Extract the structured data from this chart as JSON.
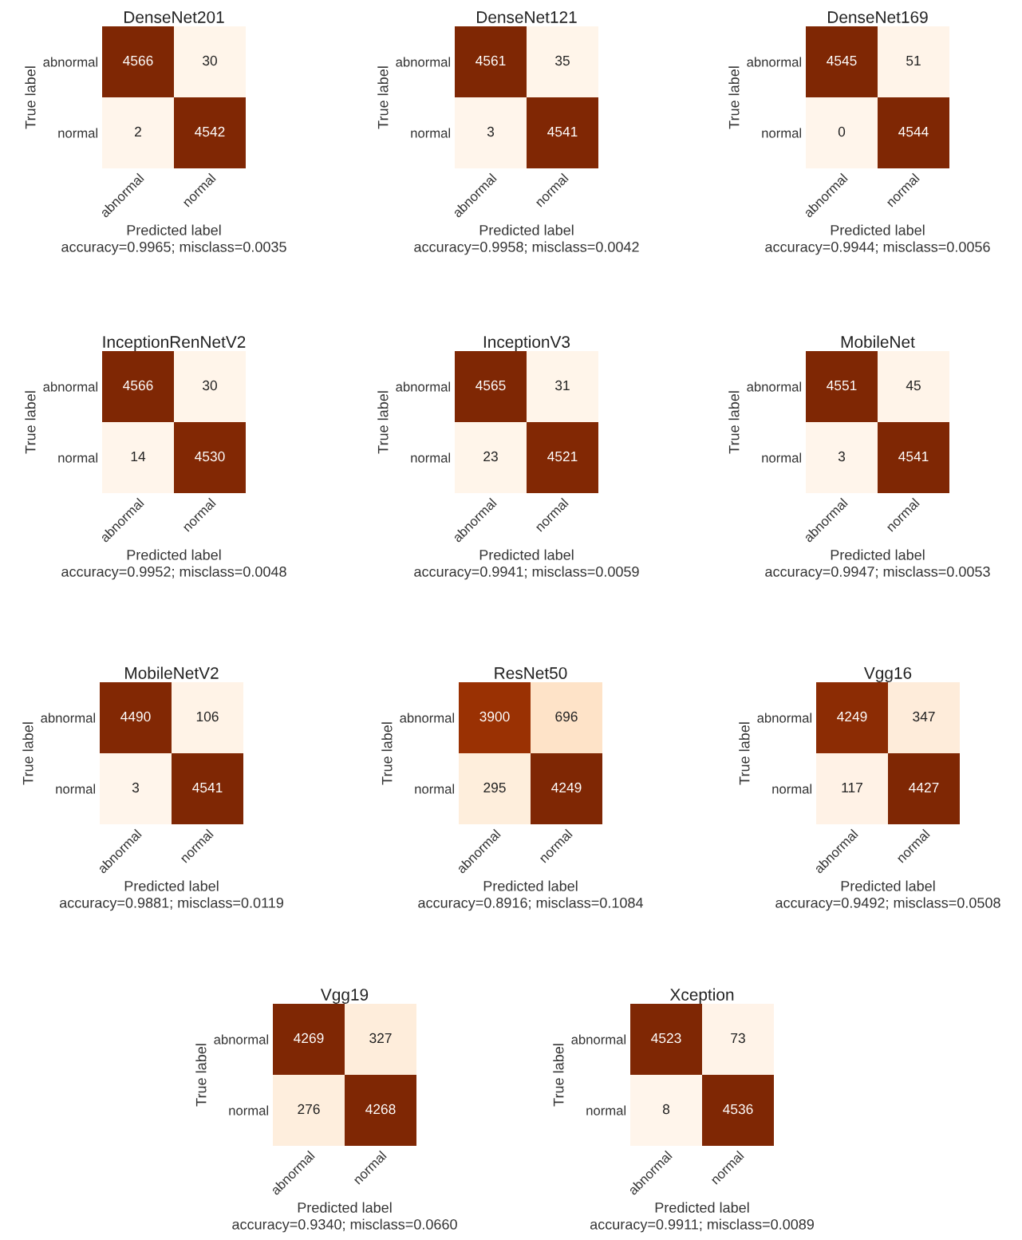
{
  "chart_data": [
    {
      "type": "heatmap",
      "title": "DenseNet201",
      "xlabel": "Predicted label",
      "ylabel": "True label",
      "categories": [
        "abnormal",
        "normal"
      ],
      "y_categories": [
        "abnormal",
        "normal"
      ],
      "cells": [
        [
          4566,
          30
        ],
        [
          2,
          4542
        ]
      ],
      "data_labels": true,
      "annotations": [
        "accuracy=0.9965; misclass=0.0035"
      ]
    },
    {
      "type": "heatmap",
      "title": "DenseNet121",
      "xlabel": "Predicted label",
      "ylabel": "True label",
      "categories": [
        "abnormal",
        "normal"
      ],
      "y_categories": [
        "abnormal",
        "normal"
      ],
      "cells": [
        [
          4561,
          35
        ],
        [
          3,
          4541
        ]
      ],
      "data_labels": true,
      "annotations": [
        "accuracy=0.9958; misclass=0.0042"
      ]
    },
    {
      "type": "heatmap",
      "title": "DenseNet169",
      "xlabel": "Predicted label",
      "ylabel": "True label",
      "categories": [
        "abnormal",
        "normal"
      ],
      "y_categories": [
        "abnormal",
        "normal"
      ],
      "cells": [
        [
          4545,
          51
        ],
        [
          0,
          4544
        ]
      ],
      "data_labels": true,
      "annotations": [
        "accuracy=0.9944; misclass=0.0056"
      ]
    },
    {
      "type": "heatmap",
      "title": "InceptionRenNetV2",
      "xlabel": "Predicted label",
      "ylabel": "True label",
      "categories": [
        "abnormal",
        "normal"
      ],
      "y_categories": [
        "abnormal",
        "normal"
      ],
      "cells": [
        [
          4566,
          30
        ],
        [
          14,
          4530
        ]
      ],
      "data_labels": true,
      "annotations": [
        "accuracy=0.9952; misclass=0.0048"
      ]
    },
    {
      "type": "heatmap",
      "title": "InceptionV3",
      "xlabel": "Predicted label",
      "ylabel": "True label",
      "categories": [
        "abnormal",
        "normal"
      ],
      "y_categories": [
        "abnormal",
        "normal"
      ],
      "cells": [
        [
          4565,
          31
        ],
        [
          23,
          4521
        ]
      ],
      "data_labels": true,
      "annotations": [
        "accuracy=0.9941; misclass=0.0059"
      ]
    },
    {
      "type": "heatmap",
      "title": "MobileNet",
      "xlabel": "Predicted label",
      "ylabel": "True label",
      "categories": [
        "abnormal",
        "normal"
      ],
      "y_categories": [
        "abnormal",
        "normal"
      ],
      "cells": [
        [
          4551,
          45
        ],
        [
          3,
          4541
        ]
      ],
      "data_labels": true,
      "annotations": [
        "accuracy=0.9947; misclass=0.0053"
      ]
    },
    {
      "type": "heatmap",
      "title": "MobileNetV2",
      "xlabel": "Predicted label",
      "ylabel": "True label",
      "categories": [
        "abnormal",
        "normal"
      ],
      "y_categories": [
        "abnormal",
        "normal"
      ],
      "cells": [
        [
          4490,
          106
        ],
        [
          3,
          4541
        ]
      ],
      "data_labels": true,
      "annotations": [
        "accuracy=0.9881; misclass=0.0119"
      ]
    },
    {
      "type": "heatmap",
      "title": "ResNet50",
      "xlabel": "Predicted label",
      "ylabel": "True label",
      "categories": [
        "abnormal",
        "normal"
      ],
      "y_categories": [
        "abnormal",
        "normal"
      ],
      "cells": [
        [
          3900,
          696
        ],
        [
          295,
          4249
        ]
      ],
      "data_labels": true,
      "annotations": [
        "accuracy=0.8916; misclass=0.1084"
      ]
    },
    {
      "type": "heatmap",
      "title": "Vgg16",
      "xlabel": "Predicted label",
      "ylabel": "True label",
      "categories": [
        "abnormal",
        "normal"
      ],
      "y_categories": [
        "abnormal",
        "normal"
      ],
      "cells": [
        [
          4249,
          347
        ],
        [
          117,
          4427
        ]
      ],
      "data_labels": true,
      "annotations": [
        "accuracy=0.9492; misclass=0.0508"
      ]
    },
    {
      "type": "heatmap",
      "title": "Vgg19",
      "xlabel": "Predicted label",
      "ylabel": "True label",
      "categories": [
        "abnormal",
        "normal"
      ],
      "y_categories": [
        "abnormal",
        "normal"
      ],
      "cells": [
        [
          4269,
          327
        ],
        [
          276,
          4268
        ]
      ],
      "data_labels": true,
      "annotations": [
        "accuracy=0.9340; misclass=0.0660"
      ]
    },
    {
      "type": "heatmap",
      "title": "Xception",
      "xlabel": "Predicted label",
      "ylabel": "True label",
      "categories": [
        "abnormal",
        "normal"
      ],
      "y_categories": [
        "abnormal",
        "normal"
      ],
      "cells": [
        [
          4523,
          73
        ],
        [
          8,
          4536
        ]
      ],
      "data_labels": true,
      "annotations": [
        "accuracy=0.9911; misclass=0.0089"
      ]
    }
  ]
}
